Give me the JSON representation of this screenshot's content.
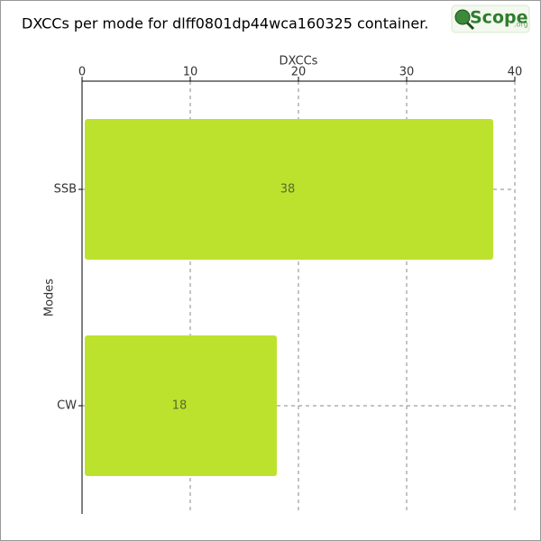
{
  "chart_data": {
    "type": "bar",
    "orientation": "horizontal",
    "title": "DXCCs per mode for dlff0801dp44wca160325 container.",
    "logo": "Scope",
    "logo_suffix": ".org",
    "x_label": "DXCCs",
    "y_label": "Modes",
    "categories": [
      "SSB",
      "CW"
    ],
    "values": [
      38,
      18
    ],
    "color": "#bde22e",
    "xlim": [
      0,
      40
    ],
    "xticks": [
      0,
      10,
      20,
      30,
      40
    ],
    "grid": true
  }
}
